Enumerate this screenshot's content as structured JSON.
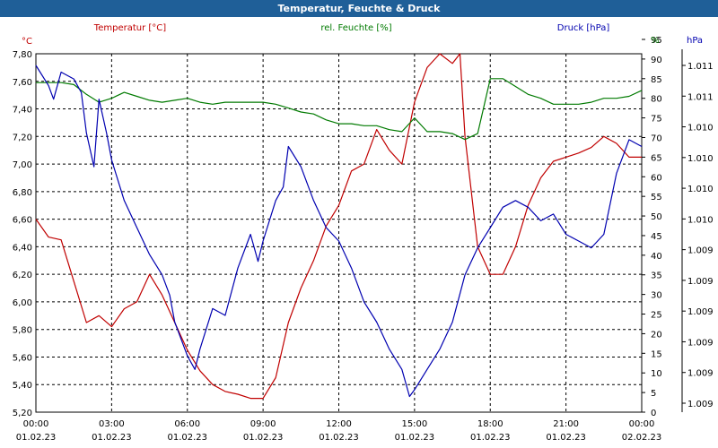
{
  "title": "Temperatur, Feuchte & Druck",
  "colors": {
    "titlebar": "#1f5f98",
    "temperature": "#c00000",
    "humidity": "#007a00",
    "pressure": "#0000b0",
    "grid": "#000000"
  },
  "chart_data": {
    "type": "line",
    "title": "Temperatur, Feuchte & Druck",
    "grid": true,
    "axes": {
      "temperature": {
        "label": "Temperatur [°C]",
        "unit": "°C",
        "range": [
          5.2,
          7.8
        ],
        "ticks": [
          "7,80",
          "7,60",
          "7,40",
          "7,20",
          "7,00",
          "6,80",
          "6,60",
          "6,40",
          "6,20",
          "6,00",
          "5,80",
          "5,60",
          "5,40",
          "5,20"
        ]
      },
      "humidity": {
        "label": "rel. Feuchte [%]",
        "unit": "%",
        "range": [
          0,
          95
        ],
        "ticks": [
          "95",
          "90",
          "85",
          "80",
          "75",
          "70",
          "65",
          "60",
          "55",
          "50",
          "45",
          "40",
          "35",
          "30",
          "25",
          "20",
          "15",
          "10",
          "5",
          "0"
        ]
      },
      "pressure": {
        "label": "Druck [hPa]",
        "unit": "hPa",
        "range": [
          1008.7,
          1011.2
        ],
        "ticks": [
          "1.011",
          "1.011",
          "1.010",
          "1.010",
          "1.010",
          "1.010",
          "1.009",
          "1.009",
          "1.009",
          "1.009",
          "1.009",
          "1.009"
        ]
      }
    },
    "x_ticks": [
      {
        "time": "00:00",
        "date": "01.02.23"
      },
      {
        "time": "03:00",
        "date": "01.02.23"
      },
      {
        "time": "06:00",
        "date": "01.02.23"
      },
      {
        "time": "09:00",
        "date": "01.02.23"
      },
      {
        "time": "12:00",
        "date": "01.02.23"
      },
      {
        "time": "15:00",
        "date": "01.02.23"
      },
      {
        "time": "18:00",
        "date": "01.02.23"
      },
      {
        "time": "21:00",
        "date": "01.02.23"
      },
      {
        "time": "00:00",
        "date": "02.02.23"
      }
    ],
    "x_range_hours": [
      0,
      24
    ],
    "series": [
      {
        "name": "Temperatur [°C]",
        "axis": "temperature",
        "x": [
          0,
          0.5,
          1.0,
          1.5,
          2.0,
          2.5,
          3.0,
          3.5,
          4.0,
          4.5,
          5.0,
          5.5,
          6.0,
          6.5,
          7.0,
          7.5,
          8.0,
          8.5,
          9.0,
          9.5,
          10.0,
          10.5,
          11.0,
          11.5,
          12.0,
          12.5,
          13.0,
          13.5,
          14.0,
          14.5,
          15.0,
          15.5,
          16.0,
          16.5,
          16.8,
          17.0,
          17.5,
          18.0,
          18.5,
          19.0,
          19.5,
          20.0,
          20.5,
          21.0,
          21.5,
          22.0,
          22.5,
          23.0,
          23.5,
          24.0
        ],
        "values": [
          6.6,
          6.47,
          6.45,
          6.15,
          5.85,
          5.9,
          5.82,
          5.95,
          6.0,
          6.2,
          6.05,
          5.85,
          5.65,
          5.5,
          5.4,
          5.35,
          5.33,
          5.3,
          5.3,
          5.45,
          5.85,
          6.1,
          6.3,
          6.55,
          6.7,
          6.95,
          7.0,
          7.25,
          7.1,
          7.0,
          7.45,
          7.7,
          7.8,
          7.73,
          7.8,
          7.2,
          6.4,
          6.2,
          6.2,
          6.4,
          6.7,
          6.9,
          7.02,
          7.05,
          7.08,
          7.12,
          7.2,
          7.15,
          7.05,
          7.05
        ]
      },
      {
        "name": "rel. Feuchte [%]",
        "axis": "humidity",
        "x": [
          0,
          0.5,
          1.0,
          1.5,
          2.0,
          2.5,
          3.0,
          3.5,
          4.0,
          4.5,
          5.0,
          5.5,
          6.0,
          6.5,
          7.0,
          7.5,
          8.0,
          8.5,
          9.0,
          9.5,
          10.0,
          10.5,
          11.0,
          11.5,
          12.0,
          12.5,
          13.0,
          13.5,
          14.0,
          14.5,
          15.0,
          15.5,
          16.0,
          16.5,
          17.0,
          17.5,
          18.0,
          18.5,
          19.0,
          19.5,
          20.0,
          20.5,
          21.0,
          21.5,
          22.0,
          22.5,
          23.0,
          23.5,
          24.0
        ],
        "values": [
          84,
          84,
          84,
          83.5,
          81,
          79,
          80,
          81.5,
          80.5,
          79.5,
          79,
          79.5,
          80,
          79,
          78.5,
          79,
          79,
          79,
          79,
          78.5,
          77.5,
          76.5,
          76,
          74.5,
          73.5,
          73.5,
          73,
          73,
          72,
          71.5,
          75,
          71.5,
          71.5,
          71,
          69.5,
          71,
          85,
          85,
          83,
          81,
          80,
          78.5,
          78.5,
          78.5,
          79,
          80,
          80,
          80.5,
          82
        ]
      },
      {
        "name": "Druck [hPa]",
        "axis": "pressure",
        "x": [
          0,
          0.5,
          0.7,
          1.0,
          1.5,
          1.8,
          2.0,
          2.3,
          2.5,
          2.8,
          3.0,
          3.5,
          4.0,
          4.5,
          5.0,
          5.3,
          5.5,
          6.0,
          6.3,
          6.5,
          7.0,
          7.5,
          8.0,
          8.5,
          8.8,
          9.0,
          9.5,
          9.8,
          10.0,
          10.5,
          11.0,
          11.5,
          12.0,
          12.5,
          13.0,
          13.5,
          14.0,
          14.5,
          14.8,
          15.0,
          15.5,
          16.0,
          16.5,
          17.0,
          17.5,
          18.0,
          18.5,
          19.0,
          19.5,
          20.0,
          20.5,
          21.0,
          21.5,
          22.0,
          22.5,
          23.0,
          23.5,
          24.0
        ],
        "values": [
          1011.2,
          1011.05,
          1010.95,
          1011.15,
          1011.1,
          1011.0,
          1010.7,
          1010.45,
          1010.95,
          1010.7,
          1010.5,
          1010.2,
          1010.0,
          1009.8,
          1009.65,
          1009.5,
          1009.3,
          1009.05,
          1008.95,
          1009.1,
          1009.4,
          1009.35,
          1009.7,
          1009.95,
          1009.75,
          1009.9,
          1010.2,
          1010.3,
          1010.6,
          1010.45,
          1010.2,
          1010.0,
          1009.9,
          1009.7,
          1009.45,
          1009.3,
          1009.1,
          1008.95,
          1008.75,
          1008.8,
          1008.95,
          1009.1,
          1009.3,
          1009.65,
          1009.85,
          1010.0,
          1010.15,
          1010.2,
          1010.15,
          1010.05,
          1010.1,
          1009.95,
          1009.9,
          1009.85,
          1009.95,
          1010.4,
          1010.65,
          1010.6
        ]
      }
    ]
  }
}
